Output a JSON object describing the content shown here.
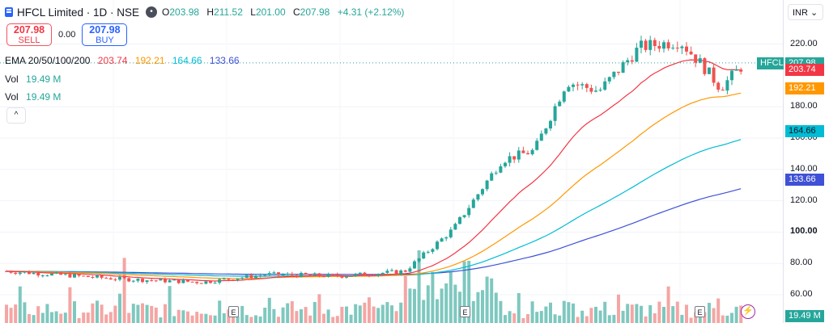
{
  "header": {
    "title": "HFCL Limited · 1D · NSE",
    "open_label": "O",
    "open": "203.98",
    "high_label": "H",
    "high": "211.52",
    "low_label": "L",
    "low": "201.00",
    "close_label": "C",
    "close": "207.98",
    "change": "+4.31 (+2.12%)"
  },
  "trade": {
    "sell_price": "207.98",
    "sell_label": "SELL",
    "spread": "0.00",
    "buy_price": "207.98",
    "buy_label": "BUY"
  },
  "ema": {
    "label": "EMA 20/50/100/200",
    "values": [
      "203.74",
      "192.21",
      "164.66",
      "133.66"
    ],
    "colors": [
      "#f23645",
      "#ff9800",
      "#00bcd4",
      "#3f51d6"
    ]
  },
  "volume_rows": [
    {
      "label": "Vol",
      "value": "19.49 M"
    },
    {
      "label": "Vol",
      "value": "19.49 M"
    }
  ],
  "collapse_icon": "chevron-up-icon",
  "collapse_glyph": "^",
  "axis": {
    "currency": "INR",
    "currency_glyph": "⌄",
    "ticks": [
      {
        "label": "220.00",
        "value": 220
      },
      {
        "label": "180.00",
        "value": 180
      },
      {
        "label": "160.00",
        "value": 160
      },
      {
        "label": "140.00",
        "value": 140
      },
      {
        "label": "120.00",
        "value": 120
      },
      {
        "label": "100.00",
        "value": 100
      },
      {
        "label": "80.00",
        "value": 80
      },
      {
        "label": "60.00",
        "value": 60
      }
    ]
  },
  "tags": {
    "symbol": "HFCL",
    "last": "207.98",
    "ema20": "203.74",
    "ema50": "192.21",
    "ema100": "164.66",
    "ema200": "133.66",
    "volume": "19.49 M"
  },
  "earnings_label": "E",
  "flash_icon": "lightning-icon",
  "flash_glyph": "⚡",
  "colors": {
    "up": "#26a69a",
    "down": "#ef5350",
    "vol_up": "#7ec8bf",
    "vol_down": "#f4a6a4",
    "ema20": "#f23645",
    "ema50": "#ff9800",
    "ema100": "#00bcd4",
    "ema200": "#3f51d6"
  }
}
